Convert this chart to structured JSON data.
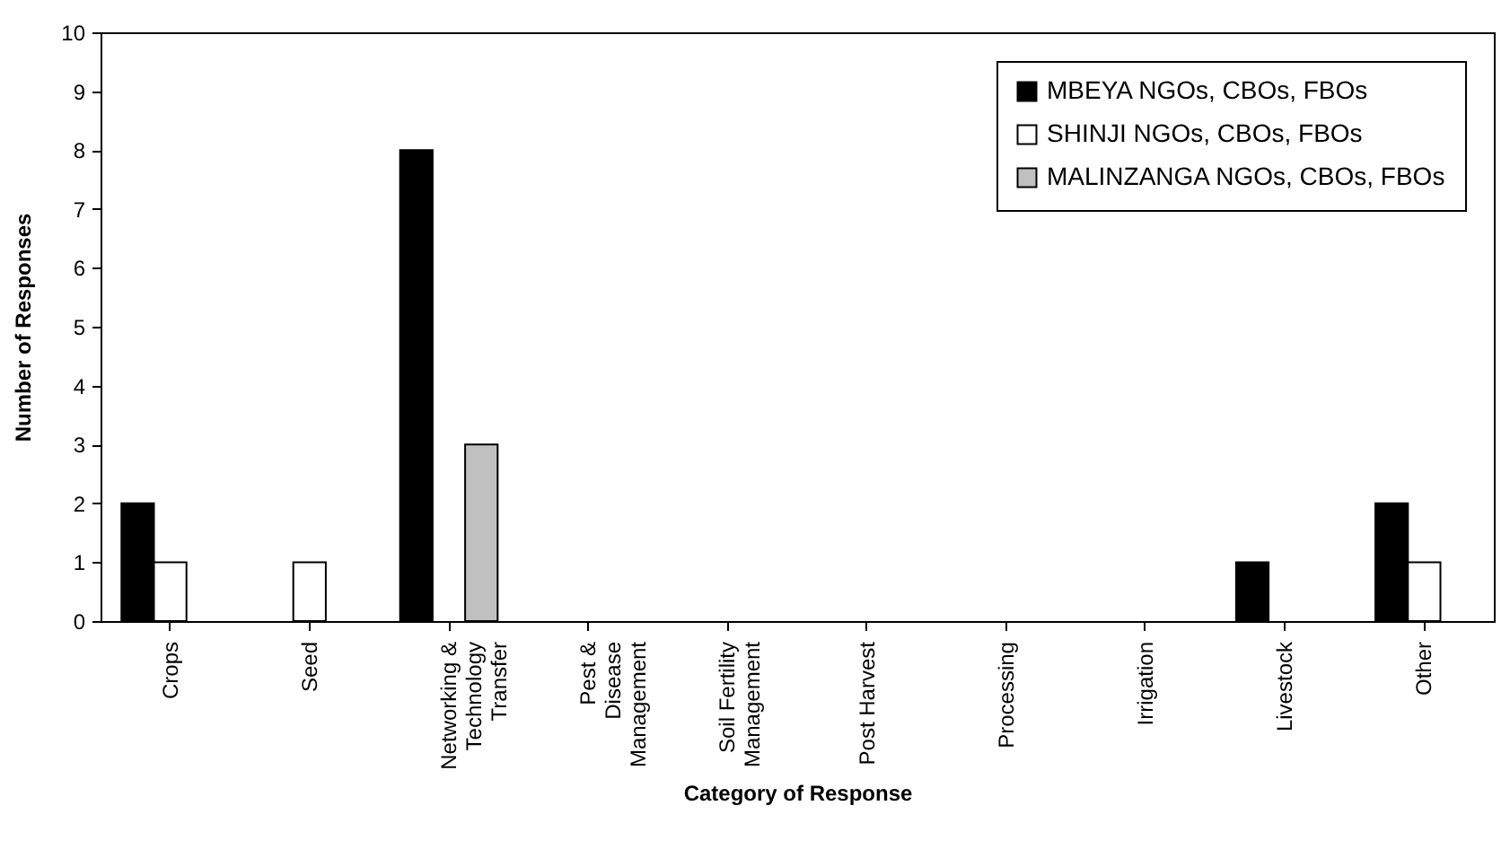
{
  "chart_data": {
    "type": "bar",
    "xlabel": "Category of Response",
    "ylabel": "Number of Responses",
    "categories": [
      "Crops",
      "Seed",
      "Networking &\nTechnology\nTransfer",
      "Pest &\nDisease\nManagement",
      "Soil Fertility\nManagement",
      "Post Harvest",
      "Processing",
      "Irrigation",
      "Livestock",
      "Other"
    ],
    "series": [
      {
        "name": "MBEYA NGOs, CBOs, FBOs",
        "color": "#000000",
        "values": [
          2,
          0,
          8,
          0,
          0,
          0,
          0,
          0,
          1,
          2
        ]
      },
      {
        "name": "SHINJI NGOs, CBOs, FBOs",
        "color": "#ffffff",
        "values": [
          1,
          1,
          0,
          0,
          0,
          0,
          0,
          0,
          0,
          1
        ]
      },
      {
        "name": "MALINZANGA NGOs, CBOs, FBOs",
        "color": "#c0c0c0",
        "values": [
          0,
          0,
          3,
          0,
          0,
          0,
          0,
          0,
          0,
          0
        ]
      }
    ],
    "ylim": [
      0,
      10
    ],
    "yticks": [
      0,
      1,
      2,
      3,
      4,
      5,
      6,
      7,
      8,
      9,
      10
    ],
    "grid": false,
    "legend": "top right"
  }
}
